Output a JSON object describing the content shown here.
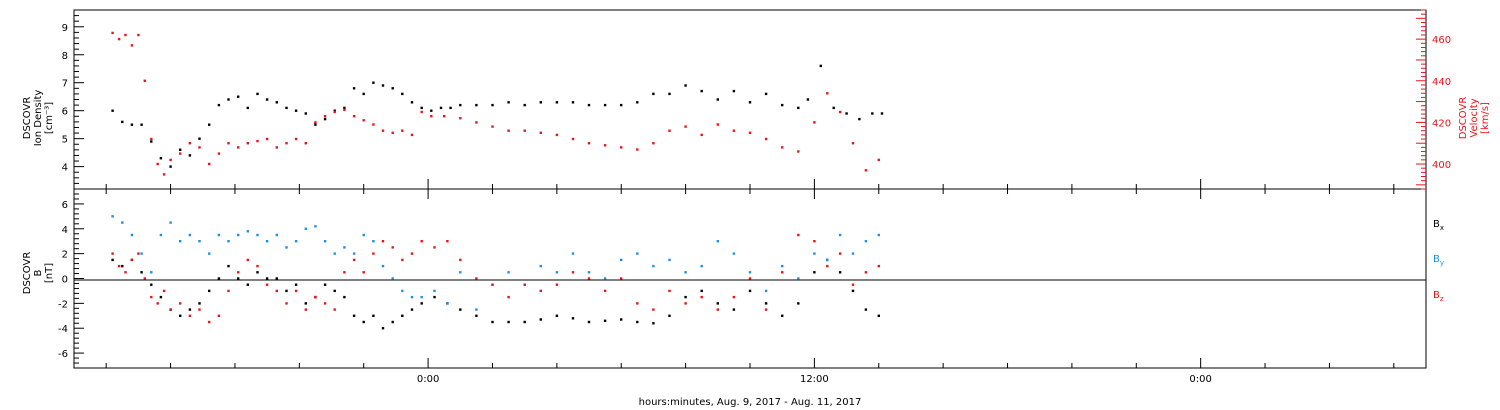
{
  "chart_data": [
    {
      "type": "scatter",
      "left_ylabel": [
        "DSCOVR",
        "Ion Density",
        "[cm⁻³]"
      ],
      "right_ylabel": [
        "DSCOVR",
        "Velocity",
        "[km/s]"
      ],
      "left_ylim": [
        3.2,
        9.6
      ],
      "right_ylim": [
        388,
        474
      ],
      "left_ticks": [
        "4",
        "5",
        "6",
        "7",
        "8",
        "9"
      ],
      "left_tick_values": [
        4,
        5,
        6,
        7,
        8,
        9
      ],
      "right_ticks": [
        "400",
        "420",
        "440",
        "460"
      ],
      "right_tick_values": [
        400,
        420,
        440,
        460
      ],
      "colors": {
        "density": "#000000",
        "velocity": "#e8141a"
      },
      "series": [
        {
          "key": "density",
          "x": [
            -9.8,
            -9.5,
            -9.2,
            -8.9,
            -8.6,
            -8.3,
            -8.0,
            -7.7,
            -7.4,
            -7.1,
            -6.8,
            -6.5,
            -6.2,
            -5.9,
            -5.6,
            -5.3,
            -5.0,
            -4.7,
            -4.4,
            -4.1,
            -3.8,
            -3.5,
            -3.2,
            -2.9,
            -2.6,
            -2.3,
            -2.0,
            -1.7,
            -1.4,
            -1.1,
            -0.8,
            -0.5,
            -0.2,
            0.1,
            0.4,
            0.7,
            1.0,
            1.5,
            2.0,
            2.5,
            3.0,
            3.5,
            4.0,
            4.5,
            5.0,
            5.5,
            6.0,
            6.5,
            7.0,
            7.5,
            8.0,
            8.5,
            9.0,
            9.5,
            10.0,
            10.5,
            11.0,
            11.5,
            11.8,
            12.2,
            12.6,
            13.0,
            13.4,
            13.8,
            14.1
          ],
          "y": [
            6.0,
            5.6,
            5.5,
            5.5,
            4.9,
            4.3,
            4.0,
            4.6,
            4.4,
            5.0,
            5.5,
            6.2,
            6.4,
            6.5,
            6.1,
            6.6,
            6.4,
            6.3,
            6.1,
            6.0,
            5.9,
            5.5,
            5.7,
            6.0,
            6.1,
            6.8,
            6.6,
            7.0,
            6.9,
            6.8,
            6.6,
            6.3,
            6.1,
            6.0,
            6.1,
            6.1,
            6.2,
            6.2,
            6.2,
            6.3,
            6.2,
            6.3,
            6.3,
            6.3,
            6.2,
            6.2,
            6.2,
            6.3,
            6.6,
            6.6,
            6.9,
            6.7,
            6.4,
            6.7,
            6.3,
            6.6,
            6.2,
            6.1,
            6.4,
            7.6,
            6.1,
            5.9,
            5.7,
            5.9,
            5.9
          ]
        },
        {
          "key": "velocity",
          "x": [
            -9.8,
            -9.6,
            -9.4,
            -9.2,
            -9.0,
            -8.8,
            -8.6,
            -8.4,
            -8.2,
            -8.0,
            -7.7,
            -7.4,
            -7.1,
            -6.8,
            -6.5,
            -6.2,
            -5.9,
            -5.6,
            -5.3,
            -5.0,
            -4.7,
            -4.4,
            -4.1,
            -3.8,
            -3.5,
            -3.2,
            -2.9,
            -2.6,
            -2.3,
            -2.0,
            -1.7,
            -1.4,
            -1.1,
            -0.8,
            -0.5,
            -0.2,
            0.1,
            0.5,
            1.0,
            1.5,
            2.0,
            2.5,
            3.0,
            3.5,
            4.0,
            4.5,
            5.0,
            5.5,
            6.0,
            6.5,
            7.0,
            7.5,
            8.0,
            8.5,
            9.0,
            9.5,
            10.0,
            10.5,
            11.0,
            11.5,
            12.0,
            12.4,
            12.8,
            13.2,
            13.6,
            14.0
          ],
          "y": [
            463,
            460,
            462,
            457,
            462,
            440,
            412,
            400,
            395,
            402,
            405,
            410,
            408,
            400,
            405,
            410,
            408,
            410,
            411,
            412,
            408,
            410,
            412,
            410,
            420,
            423,
            425,
            426,
            423,
            421,
            419,
            416,
            415,
            416,
            414,
            425,
            423,
            423,
            422,
            420,
            418,
            416,
            416,
            415,
            414,
            412,
            410,
            409,
            408,
            407,
            410,
            416,
            418,
            414,
            419,
            416,
            415,
            412,
            408,
            406,
            420,
            434,
            425,
            410,
            397,
            402
          ]
        }
      ]
    },
    {
      "type": "scatter",
      "left_ylabel": [
        "DSCOVR",
        "B",
        "[nT]"
      ],
      "ylim": [
        -7.2,
        7.2
      ],
      "ticks": [
        "-6",
        "-4",
        "-2",
        "0",
        "2",
        "4",
        "6"
      ],
      "tick_values": [
        -6,
        -4,
        -2,
        0,
        2,
        4,
        6
      ],
      "zero_line": true,
      "legend_position": "right",
      "legend": [
        {
          "key": "bx",
          "base": "B",
          "sub": "x",
          "color": "#000000"
        },
        {
          "key": "by",
          "base": "B",
          "sub": "y",
          "color": "#1f8fe0"
        },
        {
          "key": "bz",
          "base": "B",
          "sub": "z",
          "color": "#e8141a"
        }
      ],
      "series": [
        {
          "key": "bx",
          "x": [
            -9.8,
            -9.5,
            -9.2,
            -8.9,
            -8.6,
            -8.3,
            -8.0,
            -7.7,
            -7.4,
            -7.1,
            -6.8,
            -6.5,
            -6.2,
            -5.9,
            -5.6,
            -5.3,
            -5.0,
            -4.7,
            -4.4,
            -4.1,
            -3.8,
            -3.5,
            -3.2,
            -2.9,
            -2.6,
            -2.3,
            -2.0,
            -1.7,
            -1.4,
            -1.1,
            -0.8,
            -0.5,
            -0.2,
            0.2,
            0.6,
            1.0,
            1.5,
            2.0,
            2.5,
            3.0,
            3.5,
            4.0,
            4.5,
            5.0,
            5.5,
            6.0,
            6.5,
            7.0,
            7.5,
            8.0,
            8.5,
            9.0,
            9.5,
            10.0,
            10.5,
            11.0,
            11.5,
            12.0,
            12.4,
            12.8,
            13.2,
            13.6,
            14.0
          ],
          "y": [
            1.5,
            1.0,
            1.5,
            0.5,
            -0.5,
            -1.5,
            -2.5,
            -3.0,
            -2.5,
            -2.0,
            -1.0,
            0.0,
            1.0,
            0.0,
            -0.5,
            0.5,
            0.0,
            0.0,
            -1.0,
            -0.5,
            -2.0,
            -1.5,
            -0.5,
            -1.0,
            -1.5,
            -3.0,
            -3.5,
            -3.0,
            -4.0,
            -3.5,
            -3.0,
            -2.5,
            -2.0,
            -1.5,
            -2.0,
            -2.5,
            -3.0,
            -3.5,
            -3.5,
            -3.5,
            -3.3,
            -3.0,
            -3.2,
            -3.5,
            -3.4,
            -3.3,
            -3.5,
            -3.6,
            -3.0,
            -1.5,
            -1.0,
            -2.0,
            -2.5,
            -1.0,
            -2.0,
            -3.0,
            -2.0,
            0.5,
            1.5,
            0.5,
            -1.0,
            -2.5,
            -3.0
          ]
        },
        {
          "key": "by",
          "x": [
            -9.8,
            -9.5,
            -9.2,
            -8.9,
            -8.6,
            -8.3,
            -8.0,
            -7.7,
            -7.4,
            -7.1,
            -6.8,
            -6.5,
            -6.2,
            -5.9,
            -5.6,
            -5.3,
            -5.0,
            -4.7,
            -4.4,
            -4.1,
            -3.8,
            -3.5,
            -3.2,
            -2.9,
            -2.6,
            -2.3,
            -2.0,
            -1.7,
            -1.4,
            -1.1,
            -0.8,
            -0.5,
            -0.2,
            0.2,
            0.6,
            1.0,
            1.5,
            2.0,
            2.5,
            3.0,
            3.5,
            4.0,
            4.5,
            5.0,
            5.5,
            6.0,
            6.5,
            7.0,
            7.5,
            8.0,
            8.5,
            9.0,
            9.5,
            10.0,
            10.5,
            11.0,
            11.5,
            12.0,
            12.4,
            12.8,
            13.2,
            13.6,
            14.0
          ],
          "y": [
            5.0,
            4.5,
            3.5,
            2.0,
            0.5,
            3.5,
            4.5,
            3.0,
            3.5,
            3.0,
            2.0,
            3.5,
            3.0,
            3.5,
            3.8,
            3.5,
            3.0,
            3.5,
            2.5,
            3.0,
            4.0,
            4.2,
            3.0,
            2.0,
            2.5,
            2.0,
            3.5,
            3.0,
            1.0,
            0.0,
            -1.0,
            -1.5,
            -1.5,
            -1.0,
            -2.0,
            0.5,
            -2.5,
            -0.5,
            0.5,
            -0.5,
            1.0,
            0.5,
            2.0,
            0.5,
            0.0,
            1.5,
            2.0,
            1.0,
            1.5,
            0.5,
            1.0,
            3.0,
            2.0,
            0.5,
            -1.0,
            1.0,
            0.0,
            2.0,
            1.5,
            3.5,
            2.0,
            3.0,
            3.5
          ]
        },
        {
          "key": "bz",
          "x": [
            -9.8,
            -9.6,
            -9.4,
            -9.2,
            -9.0,
            -8.8,
            -8.6,
            -8.4,
            -8.2,
            -8.0,
            -7.7,
            -7.4,
            -7.1,
            -6.8,
            -6.5,
            -6.2,
            -5.9,
            -5.6,
            -5.3,
            -5.0,
            -4.7,
            -4.4,
            -4.1,
            -3.8,
            -3.5,
            -3.2,
            -2.9,
            -2.6,
            -2.3,
            -2.0,
            -1.7,
            -1.4,
            -1.1,
            -0.8,
            -0.5,
            -0.2,
            0.2,
            0.6,
            1.0,
            1.5,
            2.0,
            2.5,
            3.0,
            3.5,
            4.0,
            4.5,
            5.0,
            5.5,
            6.0,
            6.5,
            7.0,
            7.5,
            8.0,
            8.5,
            9.0,
            9.5,
            10.0,
            10.5,
            11.0,
            11.5,
            12.0,
            12.4,
            12.8,
            13.2,
            13.6,
            14.0
          ],
          "y": [
            2.0,
            1.0,
            0.5,
            1.5,
            2.0,
            0.0,
            -1.5,
            -2.0,
            -1.0,
            -2.5,
            -2.0,
            -3.0,
            -2.5,
            -3.5,
            -3.0,
            -1.0,
            0.5,
            1.5,
            1.0,
            -0.5,
            -1.0,
            -2.0,
            -1.0,
            -2.5,
            -1.5,
            -2.0,
            -2.5,
            0.5,
            1.5,
            0.5,
            2.0,
            3.0,
            2.5,
            1.5,
            2.0,
            3.0,
            2.5,
            3.0,
            1.5,
            0.0,
            -0.5,
            -1.5,
            -0.5,
            -1.0,
            -0.5,
            0.5,
            0.0,
            -1.0,
            0.0,
            -2.0,
            -2.5,
            -1.0,
            -2.0,
            -1.5,
            -2.5,
            -1.5,
            0.0,
            -2.5,
            0.5,
            3.5,
            3.0,
            1.0,
            2.0,
            -0.5,
            0.5,
            1.0
          ]
        }
      ]
    }
  ],
  "x_axis": {
    "label": "hours:minutes, Aug.  9, 2017 - Aug. 11, 2017",
    "xlim": [
      -11,
      31
    ],
    "major_ticks": [
      0,
      12,
      24
    ],
    "major_tick_labels": [
      "0:00",
      "12:00",
      "0:00"
    ],
    "minor_ticks": [
      -10,
      -8,
      -6,
      -4,
      -2,
      2,
      4,
      6,
      8,
      10,
      14,
      16,
      18,
      20,
      22,
      26,
      28,
      30
    ]
  }
}
